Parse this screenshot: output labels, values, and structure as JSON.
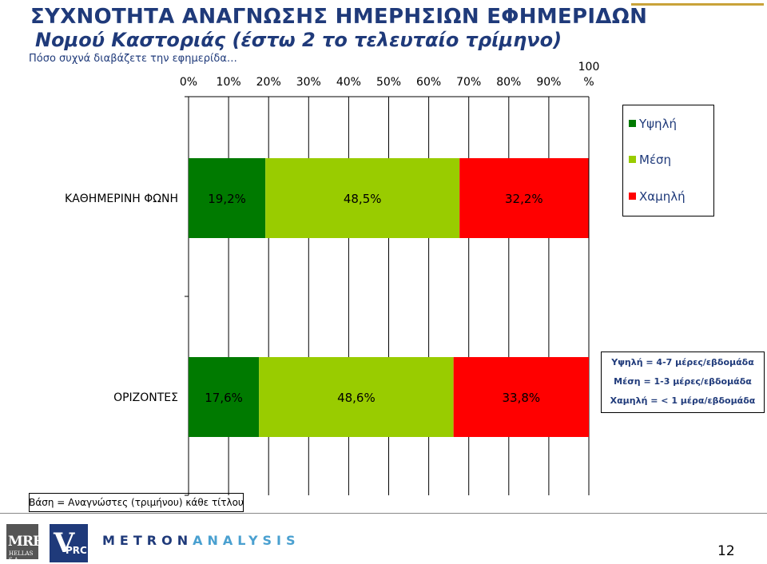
{
  "header": {
    "title": "ΣΥΧΝΟΤΗΤΑ ΑΝΑΓΝΩΣΗΣ ΗΜΕΡΗΣΙΩΝ ΕΦΗΜΕΡΙΔΩΝ",
    "subtitle": "Νομού Καστοριάς (έστω 2 το τελευταίο τρίμηνο)",
    "question": "Πόσο συχνά διαβάζετε την εφημερίδα…"
  },
  "chart_data": {
    "type": "bar",
    "orientation": "horizontal-stacked-100",
    "axis_position": "top",
    "xlim": [
      0,
      100
    ],
    "x_ticks": [
      "0%",
      "10%",
      "20%",
      "30%",
      "40%",
      "50%",
      "60%",
      "70%",
      "80%",
      "90%",
      "100\n%"
    ],
    "categories": [
      "ΚΑΘΗΜΕΡΙΝΗ ΦΩΝΗ",
      "ΟΡΙΖΟΝΤΕΣ"
    ],
    "series": [
      {
        "name": "Υψηλή",
        "color": "#007a00",
        "values": [
          19.2,
          17.6
        ],
        "labels": [
          "19,2%",
          "17,6%"
        ]
      },
      {
        "name": "Μέση",
        "color": "#99cc00",
        "values": [
          48.5,
          48.6
        ],
        "labels": [
          "48,5%",
          "48,6%"
        ]
      },
      {
        "name": "Χαμηλή",
        "color": "#ff0000",
        "values": [
          32.2,
          33.8
        ],
        "labels": [
          "32,2%",
          "33,8%"
        ]
      }
    ],
    "legend_position": "right"
  },
  "note": {
    "line1": "Υψηλή = 4-7 μέρες/εβδομάδα",
    "line2": "Μέση = 1-3 μέρες/εβδομάδα",
    "line3": "Χαμηλή = < 1 μέρα/εβδομάδα"
  },
  "footer": {
    "base": "Βάση = Αναγνώστες (τριμήνου) κάθε τίτλου",
    "mrb_logo": "MRB",
    "mrb_sub": "HELLAS S.A.",
    "vprc_logo_v": "V",
    "vprc_logo_rest": "PRC",
    "metron_logo_a": "METRON",
    "metron_logo_b": "ANALYSIS",
    "page": "12"
  }
}
